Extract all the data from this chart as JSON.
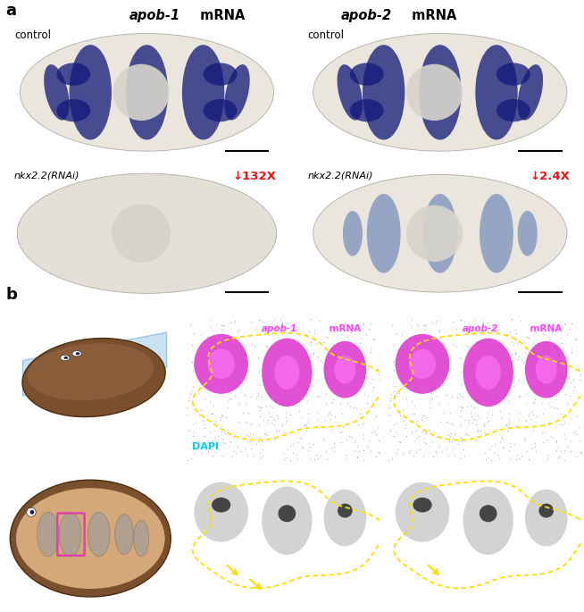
{
  "panel_a_label": "a",
  "panel_b_label": "b",
  "col1_title_italic": "apob-1",
  "col1_title_plain": " mRNA",
  "col2_title_italic": "apob-2",
  "col2_title_plain": " mRNA",
  "control_label": "control",
  "rnai_label": "nkx2.2(RNAi)",
  "fold_change_1": "↓132X",
  "fold_change_2": "↓2.4X",
  "fold_color": "#ee1111",
  "dapi_label": "DAPI",
  "dapi_color": "#00ccee",
  "apob1_fluor_title_italic": "apob-1",
  "apob2_fluor_title_italic": "apob-2",
  "fluor_title_plain": " mRNA",
  "fluor_title_color": "#ff44ff",
  "bg_panel_a": "#cac7c0",
  "worm_blue_dark": "#101878",
  "worm_body_base": "#e8e4db",
  "worm_outline": "#aaa89e",
  "pharynx_color": "#d5d0c8",
  "fluor_bg": "#050510",
  "fluor_magenta": "#dd33cc",
  "fluor_blue": "#2244aa",
  "yellow_color": "#ffdd00",
  "scale_bar_color_dark": "#000000",
  "scale_bar_color_light": "#ffffff",
  "figure_width": 6.54,
  "figure_height": 6.85,
  "dpi": 100
}
